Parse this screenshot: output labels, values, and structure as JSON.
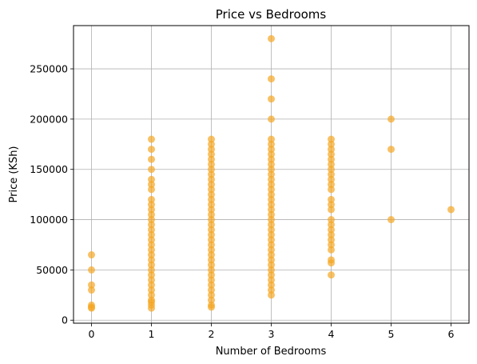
{
  "chart_data": {
    "type": "scatter",
    "title": "Price vs Bedrooms",
    "xlabel": "Number of Bedrooms",
    "ylabel": "Price (KSh)",
    "xlim": [
      -0.3,
      6.3
    ],
    "ylim": [
      -3000,
      293000
    ],
    "xticks": [
      0,
      1,
      2,
      3,
      4,
      5,
      6
    ],
    "yticks": [
      0,
      50000,
      100000,
      150000,
      200000,
      250000
    ],
    "grid": true,
    "marker_color": "#f5a623",
    "marker_alpha": 0.7,
    "points": [
      [
        0,
        65000
      ],
      [
        0,
        50000
      ],
      [
        0,
        35000
      ],
      [
        0,
        30000
      ],
      [
        0,
        15000
      ],
      [
        0,
        13000
      ],
      [
        0,
        12000
      ],
      [
        1,
        180000
      ],
      [
        1,
        170000
      ],
      [
        1,
        160000
      ],
      [
        1,
        150000
      ],
      [
        1,
        140000
      ],
      [
        1,
        135000
      ],
      [
        1,
        130000
      ],
      [
        1,
        120000
      ],
      [
        1,
        115000
      ],
      [
        1,
        110000
      ],
      [
        1,
        105000
      ],
      [
        1,
        100000
      ],
      [
        1,
        95000
      ],
      [
        1,
        90000
      ],
      [
        1,
        85000
      ],
      [
        1,
        80000
      ],
      [
        1,
        75000
      ],
      [
        1,
        70000
      ],
      [
        1,
        65000
      ],
      [
        1,
        60000
      ],
      [
        1,
        55000
      ],
      [
        1,
        50000
      ],
      [
        1,
        45000
      ],
      [
        1,
        40000
      ],
      [
        1,
        35000
      ],
      [
        1,
        30000
      ],
      [
        1,
        25000
      ],
      [
        1,
        20000
      ],
      [
        1,
        18000
      ],
      [
        1,
        15000
      ],
      [
        1,
        12000
      ],
      [
        2,
        180000
      ],
      [
        2,
        175000
      ],
      [
        2,
        170000
      ],
      [
        2,
        165000
      ],
      [
        2,
        160000
      ],
      [
        2,
        155000
      ],
      [
        2,
        150000
      ],
      [
        2,
        145000
      ],
      [
        2,
        140000
      ],
      [
        2,
        135000
      ],
      [
        2,
        130000
      ],
      [
        2,
        125000
      ],
      [
        2,
        120000
      ],
      [
        2,
        115000
      ],
      [
        2,
        110000
      ],
      [
        2,
        105000
      ],
      [
        2,
        100000
      ],
      [
        2,
        95000
      ],
      [
        2,
        90000
      ],
      [
        2,
        85000
      ],
      [
        2,
        80000
      ],
      [
        2,
        75000
      ],
      [
        2,
        70000
      ],
      [
        2,
        65000
      ],
      [
        2,
        60000
      ],
      [
        2,
        55000
      ],
      [
        2,
        50000
      ],
      [
        2,
        45000
      ],
      [
        2,
        40000
      ],
      [
        2,
        35000
      ],
      [
        2,
        30000
      ],
      [
        2,
        25000
      ],
      [
        2,
        20000
      ],
      [
        2,
        15000
      ],
      [
        2,
        13000
      ],
      [
        3,
        280000
      ],
      [
        3,
        240000
      ],
      [
        3,
        220000
      ],
      [
        3,
        200000
      ],
      [
        3,
        180000
      ],
      [
        3,
        175000
      ],
      [
        3,
        170000
      ],
      [
        3,
        165000
      ],
      [
        3,
        160000
      ],
      [
        3,
        155000
      ],
      [
        3,
        150000
      ],
      [
        3,
        145000
      ],
      [
        3,
        140000
      ],
      [
        3,
        135000
      ],
      [
        3,
        130000
      ],
      [
        3,
        125000
      ],
      [
        3,
        120000
      ],
      [
        3,
        115000
      ],
      [
        3,
        110000
      ],
      [
        3,
        105000
      ],
      [
        3,
        100000
      ],
      [
        3,
        95000
      ],
      [
        3,
        90000
      ],
      [
        3,
        85000
      ],
      [
        3,
        80000
      ],
      [
        3,
        75000
      ],
      [
        3,
        70000
      ],
      [
        3,
        65000
      ],
      [
        3,
        60000
      ],
      [
        3,
        55000
      ],
      [
        3,
        50000
      ],
      [
        3,
        45000
      ],
      [
        3,
        40000
      ],
      [
        3,
        35000
      ],
      [
        3,
        30000
      ],
      [
        3,
        25000
      ],
      [
        4,
        180000
      ],
      [
        4,
        175000
      ],
      [
        4,
        170000
      ],
      [
        4,
        165000
      ],
      [
        4,
        160000
      ],
      [
        4,
        155000
      ],
      [
        4,
        150000
      ],
      [
        4,
        145000
      ],
      [
        4,
        140000
      ],
      [
        4,
        135000
      ],
      [
        4,
        130000
      ],
      [
        4,
        120000
      ],
      [
        4,
        115000
      ],
      [
        4,
        110000
      ],
      [
        4,
        100000
      ],
      [
        4,
        95000
      ],
      [
        4,
        90000
      ],
      [
        4,
        85000
      ],
      [
        4,
        80000
      ],
      [
        4,
        75000
      ],
      [
        4,
        70000
      ],
      [
        4,
        60000
      ],
      [
        4,
        57000
      ],
      [
        4,
        45000
      ],
      [
        5,
        200000
      ],
      [
        5,
        170000
      ],
      [
        5,
        100000
      ],
      [
        6,
        110000
      ]
    ]
  }
}
